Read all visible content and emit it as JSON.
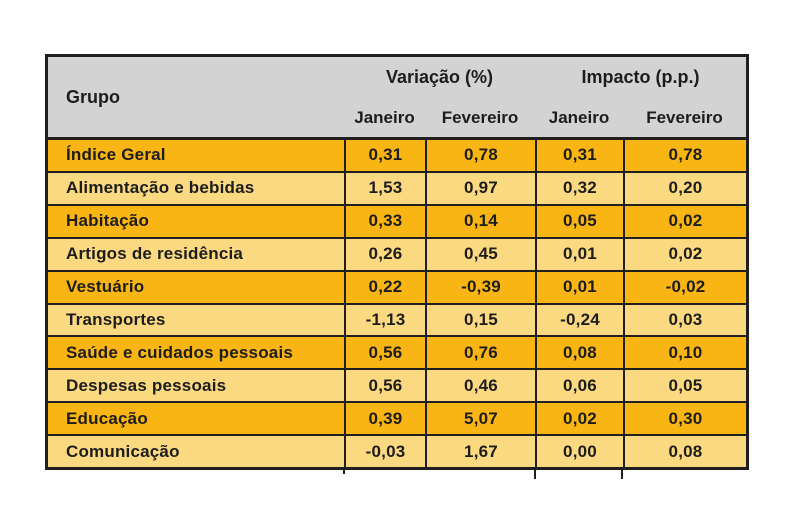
{
  "table": {
    "header": {
      "group_label": "Grupo",
      "variation_label": "Variação (%)",
      "impact_label": "Impacto (p.p.)",
      "sub_labels": [
        "Janeiro",
        "Fevereiro",
        "Janeiro",
        "Fevereiro"
      ]
    },
    "rows": [
      {
        "group": "Índice Geral",
        "values": [
          "0,31",
          "0,78",
          "0,31",
          "0,78"
        ]
      },
      {
        "group": "Alimentação e bebidas",
        "values": [
          "1,53",
          "0,97",
          "0,32",
          "0,20"
        ]
      },
      {
        "group": "Habitação",
        "values": [
          "0,33",
          "0,14",
          "0,05",
          "0,02"
        ]
      },
      {
        "group": "Artigos de residência",
        "values": [
          "0,26",
          "0,45",
          "0,01",
          "0,02"
        ]
      },
      {
        "group": "Vestuário",
        "values": [
          "0,22",
          "-0,39",
          "0,01",
          "-0,02"
        ]
      },
      {
        "group": "Transportes",
        "values": [
          "-1,13",
          "0,15",
          "-0,24",
          "0,03"
        ]
      },
      {
        "group": "Saúde e cuidados pessoais",
        "values": [
          "0,56",
          "0,76",
          "0,08",
          "0,10"
        ]
      },
      {
        "group": "Despesas pessoais",
        "values": [
          "0,56",
          "0,46",
          "0,06",
          "0,05"
        ]
      },
      {
        "group": "Educação",
        "values": [
          "0,39",
          "5,07",
          "0,02",
          "0,30"
        ]
      },
      {
        "group": "Comunicação",
        "values": [
          "-0,03",
          "1,67",
          "0,00",
          "0,08"
        ]
      }
    ],
    "colors": {
      "header_bg": "#d3d3d3",
      "row_dark": "#f9b513",
      "row_light": "#fbd981",
      "border": "#1f1f1f",
      "text": "#1d1d1d",
      "page_bg": "#ffffff"
    }
  },
  "chart_data": {
    "type": "table",
    "title": "",
    "categories": [
      "Índice Geral",
      "Alimentação e bebidas",
      "Habitação",
      "Artigos de residência",
      "Vestuário",
      "Transportes",
      "Saúde e cuidados pessoais",
      "Despesas pessoais",
      "Educação",
      "Comunicação"
    ],
    "column_groups": [
      "Variação (%)",
      "Impacto (p.p.)"
    ],
    "series": [
      {
        "name": "Variação (%) Janeiro",
        "values": [
          0.31,
          1.53,
          0.33,
          0.26,
          0.22,
          -1.13,
          0.56,
          0.56,
          0.39,
          -0.03
        ]
      },
      {
        "name": "Variação (%) Fevereiro",
        "values": [
          0.78,
          0.97,
          0.14,
          0.45,
          -0.39,
          0.15,
          0.76,
          0.46,
          5.07,
          1.67
        ]
      },
      {
        "name": "Impacto (p.p.) Janeiro",
        "values": [
          0.31,
          0.32,
          0.05,
          0.01,
          0.01,
          -0.24,
          0.08,
          0.06,
          0.02,
          0.0
        ]
      },
      {
        "name": "Impacto (p.p.) Fevereiro",
        "values": [
          0.78,
          0.2,
          0.02,
          0.02,
          -0.02,
          0.03,
          0.1,
          0.05,
          0.3,
          0.08
        ]
      }
    ],
    "decimal_separator": ",",
    "legend_position": "none",
    "grid": true
  }
}
